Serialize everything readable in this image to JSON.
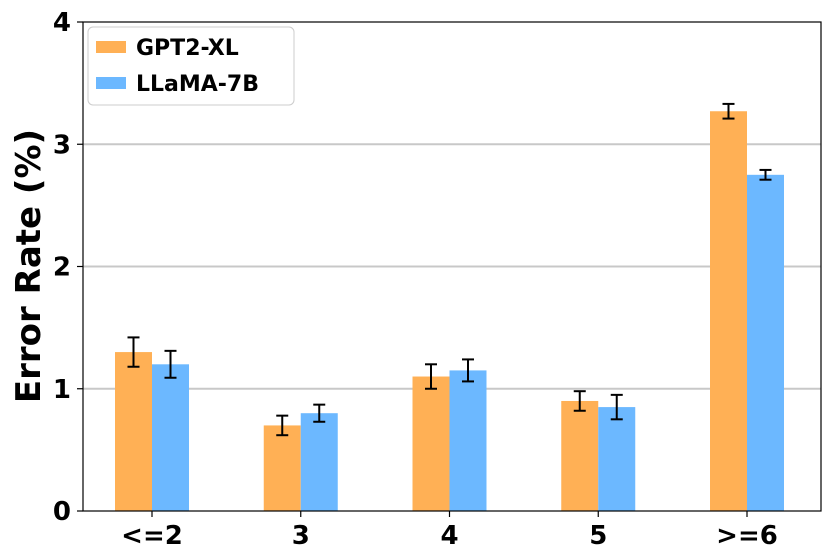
{
  "chart_data": {
    "type": "bar",
    "title": "",
    "xlabel": "",
    "ylabel": "Error Rate (%)",
    "ylim": [
      0,
      4
    ],
    "yticks": [
      0,
      1,
      2,
      3,
      4
    ],
    "grid": "horizontal at y=1,2,3",
    "legend_position": "top-left",
    "categories": [
      "<=2",
      "3",
      "4",
      "5",
      ">=6"
    ],
    "series": [
      {
        "name": "GPT2-XL",
        "color": "#ffb055",
        "values": [
          1.3,
          0.7,
          1.1,
          0.9,
          3.27
        ],
        "errors": [
          0.12,
          0.08,
          0.1,
          0.08,
          0.06
        ]
      },
      {
        "name": "LLaMA-7B",
        "color": "#6cb8ff",
        "values": [
          1.2,
          0.8,
          1.15,
          0.85,
          2.75
        ],
        "errors": [
          0.11,
          0.07,
          0.09,
          0.1,
          0.04
        ]
      }
    ]
  }
}
